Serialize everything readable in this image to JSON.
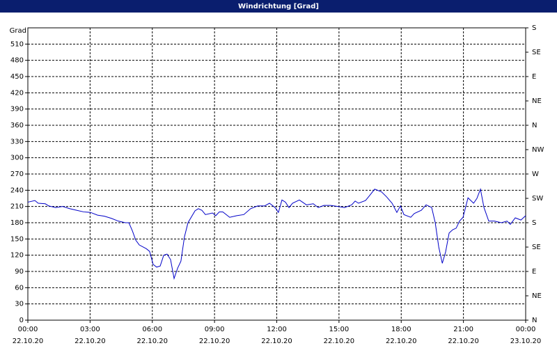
{
  "chart_data": {
    "type": "line",
    "title": "Windrichtung [Grad]",
    "ylabel": "Grad",
    "x": [
      0,
      0.34,
      0.5,
      0.84,
      1.01,
      1.34,
      1.68,
      2.01,
      2.35,
      2.69,
      3.02,
      3.36,
      3.69,
      4.03,
      4.36,
      4.7,
      4.87,
      5.04,
      5.2,
      5.37,
      5.71,
      5.87,
      6.04,
      6.21,
      6.38,
      6.55,
      6.71,
      6.88,
      7.05,
      7.22,
      7.38,
      7.55,
      7.72,
      8.06,
      8.22,
      8.39,
      8.56,
      8.9,
      9.06,
      9.23,
      9.4,
      9.73,
      10.07,
      10.41,
      10.74,
      11.08,
      11.41,
      11.65,
      11.92,
      12.08,
      12.25,
      12.42,
      12.59,
      12.76,
      13.09,
      13.43,
      13.76,
      14.0,
      14.27,
      14.6,
      14.94,
      15.27,
      15.61,
      15.78,
      15.94,
      16.28,
      16.45,
      16.72,
      17.05,
      17.29,
      17.56,
      17.79,
      17.96,
      18.13,
      18.46,
      18.63,
      18.97,
      19.2,
      19.47,
      19.64,
      19.81,
      19.98,
      20.14,
      20.31,
      20.48,
      20.65,
      20.81,
      20.98,
      21.22,
      21.49,
      21.65,
      21.82,
      21.99,
      22.22,
      22.49,
      22.83,
      23.1,
      23.26,
      23.5,
      23.77,
      24
    ],
    "series": [
      {
        "color": "#0000c8",
        "axis": "y",
        "values": [
          218,
          221,
          216,
          215,
          211,
          208,
          210,
          206,
          203,
          200,
          199,
          194,
          192,
          188,
          183,
          180,
          180,
          165,
          148,
          139,
          132,
          127,
          103,
          98,
          100,
          120,
          122,
          112,
          77,
          96,
          109,
          154,
          180,
          202,
          206,
          203,
          195,
          198,
          193,
          200,
          200,
          190,
          193,
          195,
          206,
          211,
          211,
          216,
          208,
          199,
          222,
          218,
          208,
          216,
          222,
          213,
          215,
          208,
          212,
          212,
          210,
          208,
          213,
          220,
          216,
          221,
          229,
          242,
          237,
          228,
          216,
          199,
          211,
          195,
          190,
          197,
          203,
          213,
          208,
          180,
          135,
          105,
          126,
          161,
          167,
          170,
          183,
          190,
          226,
          216,
          225,
          242,
          208,
          183,
          183,
          180,
          183,
          177,
          189,
          185,
          193
        ]
      }
    ],
    "xlim": [
      0,
      24
    ],
    "xticks": [
      {
        "value": 0,
        "label": "00:00",
        "date": "22.10.20"
      },
      {
        "value": 3,
        "label": "03:00",
        "date": "22.10.20"
      },
      {
        "value": 6,
        "label": "06:00",
        "date": "22.10.20"
      },
      {
        "value": 9,
        "label": "09:00",
        "date": "22.10.20"
      },
      {
        "value": 12,
        "label": "12:00",
        "date": "22.10.20"
      },
      {
        "value": 15,
        "label": "15:00",
        "date": "22.10.20"
      },
      {
        "value": 18,
        "label": "18:00",
        "date": "22.10.20"
      },
      {
        "value": 21,
        "label": "21:00",
        "date": "22.10.20"
      },
      {
        "value": 24,
        "label": "00:00",
        "date": "23.10.20"
      }
    ],
    "ylim": [
      0,
      540
    ],
    "yticks": [
      0,
      30,
      60,
      90,
      120,
      150,
      180,
      210,
      240,
      270,
      300,
      330,
      360,
      390,
      420,
      450,
      480,
      510
    ],
    "y2lim": [
      0,
      540
    ],
    "y2ticks": [
      {
        "value": 0,
        "label": "N"
      },
      {
        "value": 45,
        "label": "NE"
      },
      {
        "value": 90,
        "label": "E"
      },
      {
        "value": 135,
        "label": "SE"
      },
      {
        "value": 180,
        "label": "S"
      },
      {
        "value": 225,
        "label": "SW"
      },
      {
        "value": 270,
        "label": "W"
      },
      {
        "value": 315,
        "label": "NW"
      },
      {
        "value": 360,
        "label": "N"
      },
      {
        "value": 405,
        "label": "NE"
      },
      {
        "value": 450,
        "label": "E"
      },
      {
        "value": 495,
        "label": "SE"
      },
      {
        "value": 540,
        "label": "S"
      }
    ],
    "grid": true
  }
}
